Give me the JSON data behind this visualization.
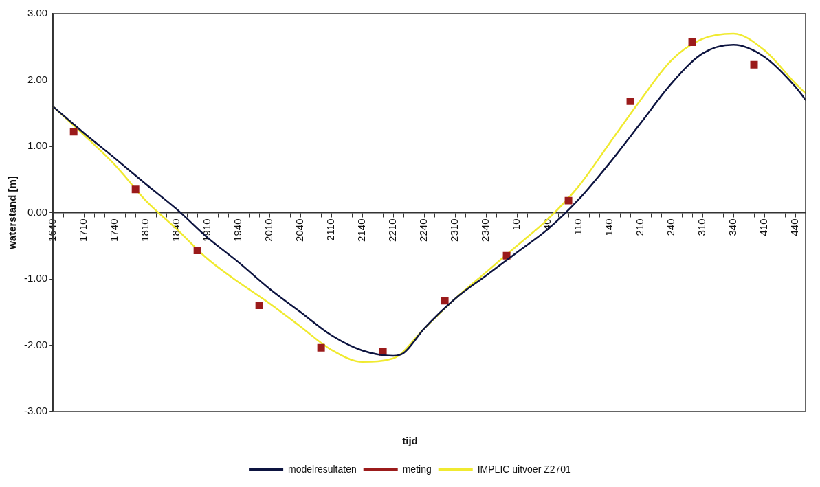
{
  "chart_data": {
    "type": "line",
    "xlabel": "tijd",
    "ylabel": "waterstand [m]",
    "categories": [
      "1640",
      null,
      null,
      "1710",
      null,
      null,
      "1740",
      null,
      null,
      "1810",
      null,
      null,
      "1840",
      null,
      null,
      "1910",
      null,
      null,
      "1940",
      null,
      null,
      "2010",
      null,
      null,
      "2040",
      null,
      null,
      "2110",
      null,
      null,
      "2140",
      null,
      null,
      "2210",
      null,
      null,
      "2240",
      null,
      null,
      "2310",
      null,
      null,
      "2340",
      null,
      null,
      "10",
      null,
      null,
      "40",
      null,
      null,
      "110",
      null,
      null,
      "140",
      null,
      null,
      "210",
      null,
      null,
      "240",
      null,
      null,
      "310",
      null,
      null,
      "340",
      null,
      null,
      "410",
      null,
      null,
      "440",
      null
    ],
    "ylim": [
      -3,
      3
    ],
    "yticks": [
      {
        "value": -3,
        "label": "-3.00"
      },
      {
        "value": -2,
        "label": "-2.00"
      },
      {
        "value": -1,
        "label": "-1.00"
      },
      {
        "value": 0,
        "label": "0.00"
      },
      {
        "value": 1,
        "label": "1.00"
      },
      {
        "value": 2,
        "label": "2.00"
      },
      {
        "value": 3,
        "label": "3.00"
      }
    ],
    "legend": "bottom",
    "line_style": "solid",
    "series": [
      {
        "name": "modelresultaten",
        "color": "#0d1440",
        "marker": "none",
        "values": [
          1.6,
          null,
          null,
          1.2,
          null,
          null,
          0.82,
          null,
          null,
          0.43,
          null,
          null,
          0.05,
          null,
          null,
          -0.38,
          null,
          null,
          -0.75,
          null,
          null,
          -1.15,
          null,
          null,
          -1.5,
          null,
          null,
          -1.85,
          null,
          null,
          -2.08,
          null,
          null,
          -2.16,
          -2.12,
          null,
          -1.75,
          null,
          null,
          -1.3,
          null,
          null,
          -0.95,
          null,
          null,
          -0.6,
          null,
          null,
          -0.25,
          null,
          null,
          0.2,
          null,
          null,
          0.75,
          null,
          null,
          1.35,
          null,
          null,
          1.95,
          null,
          null,
          2.4,
          null,
          null,
          2.53,
          null,
          null,
          2.35,
          null,
          null,
          1.9,
          1.7
        ]
      },
      {
        "name": "meting",
        "color": "#9b1b1b",
        "type": "scatter",
        "marker": "square",
        "values": [
          null,
          null,
          1.22,
          null,
          null,
          null,
          null,
          null,
          0.35,
          null,
          null,
          null,
          null,
          null,
          -0.57,
          null,
          null,
          null,
          null,
          null,
          -1.4,
          null,
          null,
          null,
          null,
          null,
          -2.04,
          null,
          null,
          null,
          null,
          null,
          -2.1,
          null,
          null,
          null,
          null,
          null,
          -1.33,
          null,
          null,
          null,
          null,
          null,
          -0.65,
          null,
          null,
          null,
          null,
          null,
          0.18,
          null,
          null,
          null,
          null,
          null,
          1.68,
          null,
          null,
          null,
          null,
          null,
          2.57,
          null,
          null,
          null,
          null,
          null,
          2.23,
          null,
          null,
          null,
          null,
          null
        ]
      },
      {
        "name": "IMPLIC uitvoer Z2701",
        "color": "#f0ea30",
        "marker": "none",
        "values": [
          1.6,
          null,
          null,
          1.17,
          null,
          null,
          0.72,
          null,
          null,
          0.18,
          null,
          null,
          -0.25,
          null,
          null,
          -0.7,
          null,
          null,
          -1.05,
          null,
          null,
          -1.37,
          null,
          null,
          -1.72,
          null,
          null,
          -2.07,
          null,
          null,
          -2.25,
          null,
          null,
          -2.2,
          null,
          null,
          -1.75,
          null,
          null,
          -1.3,
          null,
          null,
          -0.9,
          null,
          null,
          -0.5,
          null,
          null,
          -0.1,
          null,
          null,
          0.4,
          null,
          null,
          1.05,
          null,
          null,
          1.7,
          null,
          null,
          2.3,
          null,
          null,
          2.62,
          null,
          null,
          2.7,
          null,
          null,
          2.45,
          null,
          null,
          1.95,
          1.8
        ]
      }
    ]
  }
}
